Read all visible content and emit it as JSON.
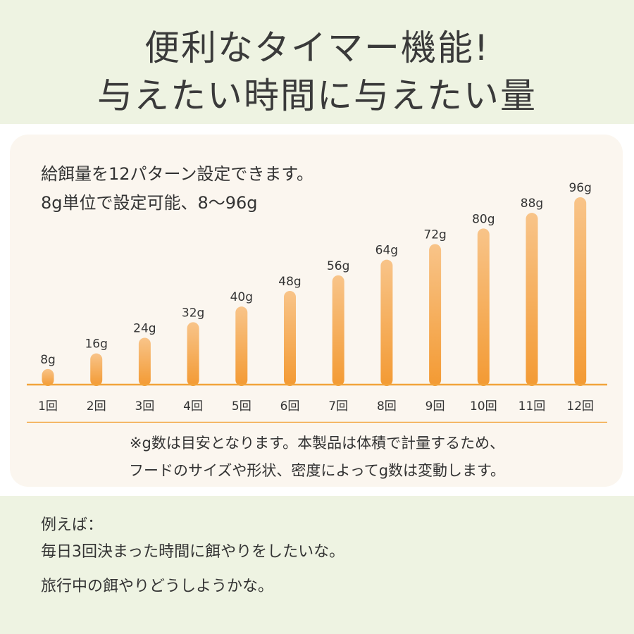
{
  "header": {
    "title_line1": "便利なタイマー機能!",
    "title_line2": "与えたい時間に与えたい量"
  },
  "description": {
    "line1": "給餌量を12パターン設定できます。",
    "line2": "8g単位で設定可能、8～96g"
  },
  "note": {
    "line1": "※g数は目安となります。本製品は体積で計量するため、",
    "line2": "フードのサイズや形状、密度によってg数は変動します。"
  },
  "example": {
    "line1": "例えば：",
    "line2": "毎日3回決まった時間に餌やりをしたいな。",
    "line3": "旅行中の餌やりどうしようかな。"
  },
  "colors": {
    "bar_top": "#f8c489",
    "bar_bottom": "#f39a33",
    "axis": "#f2a43c",
    "header_bg": "#eef3e2",
    "card_bg": "#fbf6ef"
  },
  "chart_data": {
    "type": "bar",
    "categories": [
      "1回",
      "2回",
      "3回",
      "4回",
      "5回",
      "6回",
      "7回",
      "8回",
      "9回",
      "10回",
      "11回",
      "12回"
    ],
    "values": [
      8,
      16,
      24,
      32,
      40,
      48,
      56,
      64,
      72,
      80,
      88,
      96
    ],
    "data_labels": [
      "8g",
      "16g",
      "24g",
      "32g",
      "40g",
      "48g",
      "56g",
      "64g",
      "72g",
      "80g",
      "88g",
      "96g"
    ],
    "ylim": [
      0,
      96
    ],
    "grid": false,
    "legend": "none"
  }
}
